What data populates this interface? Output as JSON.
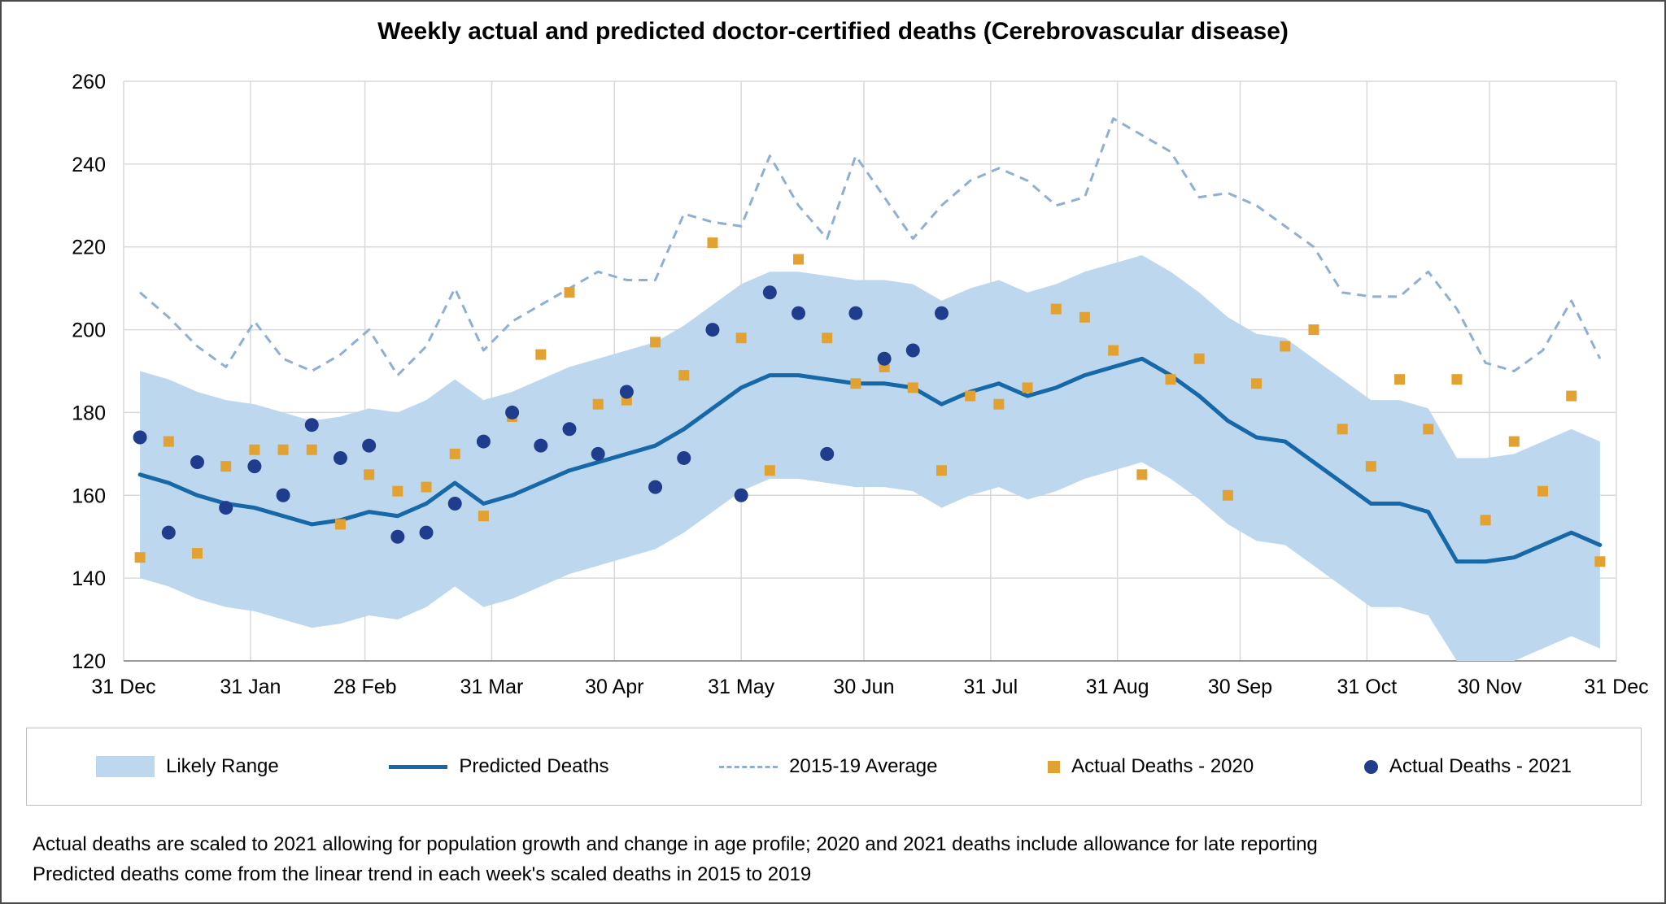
{
  "title": "Weekly actual and predicted doctor-certified deaths (Cerebrovascular disease)",
  "legend": {
    "items": [
      {
        "id": "likely-range",
        "label": "Likely Range"
      },
      {
        "id": "predicted-deaths",
        "label": "Predicted Deaths"
      },
      {
        "id": "average",
        "label": "2015-19 Average"
      },
      {
        "id": "actual-2020",
        "label": "Actual Deaths - 2020"
      },
      {
        "id": "actual-2021",
        "label": "Actual Deaths - 2021"
      }
    ]
  },
  "footnotes": {
    "line1": "Actual deaths are scaled to 2021 allowing for population growth and change in age profile; 2020 and 2021 deaths include allowance for late reporting",
    "line2": "Predicted deaths come from the linear trend in each week's scaled deaths in 2015 to 2019"
  },
  "chart_data": {
    "type": "line",
    "title": "Weekly actual and predicted doctor-certified deaths (Cerebrovascular disease)",
    "ylim": [
      120,
      260
    ],
    "y_ticks": [
      120,
      140,
      160,
      180,
      200,
      220,
      240,
      260
    ],
    "x_ticks": [
      {
        "day": 0,
        "label": "31 Dec"
      },
      {
        "day": 31,
        "label": "31 Jan"
      },
      {
        "day": 59,
        "label": "28 Feb"
      },
      {
        "day": 90,
        "label": "31 Mar"
      },
      {
        "day": 120,
        "label": "30 Apr"
      },
      {
        "day": 151,
        "label": "31 May"
      },
      {
        "day": 181,
        "label": "30 Jun"
      },
      {
        "day": 212,
        "label": "31 Jul"
      },
      {
        "day": 243,
        "label": "31 Aug"
      },
      {
        "day": 273,
        "label": "30 Sep"
      },
      {
        "day": 304,
        "label": "31 Oct"
      },
      {
        "day": 334,
        "label": "30 Nov"
      },
      {
        "day": 365,
        "label": "31 Dec"
      }
    ],
    "first_point_day": 4,
    "point_spacing_days": 7,
    "grid": true,
    "legend_position": "bottom",
    "series": [
      {
        "name": "Likely Range",
        "type": "band",
        "upper": [
          190,
          188,
          185,
          183,
          182,
          180,
          178,
          179,
          181,
          180,
          183,
          188,
          183,
          185,
          188,
          191,
          193,
          195,
          197,
          201,
          206,
          211,
          214,
          214,
          213,
          212,
          212,
          211,
          207,
          210,
          212,
          209,
          211,
          214,
          216,
          218,
          214,
          209,
          203,
          199,
          198,
          193,
          188,
          183,
          183,
          181,
          169,
          169,
          170,
          173,
          176,
          173
        ],
        "lower": [
          140,
          138,
          135,
          133,
          132,
          130,
          128,
          129,
          131,
          130,
          133,
          138,
          133,
          135,
          138,
          141,
          143,
          145,
          147,
          151,
          156,
          161,
          164,
          164,
          163,
          162,
          162,
          161,
          157,
          160,
          162,
          159,
          161,
          164,
          166,
          168,
          164,
          159,
          153,
          149,
          148,
          143,
          138,
          133,
          133,
          131,
          119,
          119,
          120,
          123,
          126,
          123
        ]
      },
      {
        "name": "Predicted Deaths",
        "type": "line",
        "values": [
          165,
          163,
          160,
          158,
          157,
          155,
          153,
          154,
          156,
          155,
          158,
          163,
          158,
          160,
          163,
          166,
          168,
          170,
          172,
          176,
          181,
          186,
          189,
          189,
          188,
          187,
          187,
          186,
          182,
          185,
          187,
          184,
          186,
          189,
          191,
          193,
          189,
          184,
          178,
          174,
          173,
          168,
          163,
          158,
          158,
          156,
          144,
          144,
          145,
          148,
          151,
          148
        ]
      },
      {
        "name": "2015-19 Average",
        "type": "dashed-line",
        "values": [
          209,
          203,
          196,
          191,
          202,
          193,
          190,
          194,
          200,
          189,
          196,
          210,
          195,
          202,
          206,
          210,
          214,
          212,
          212,
          228,
          226,
          225,
          242,
          230,
          222,
          242,
          232,
          222,
          230,
          236,
          239,
          236,
          230,
          232,
          251,
          247,
          243,
          232,
          233,
          230,
          225,
          220,
          209,
          208,
          208,
          214,
          205,
          192,
          190,
          195,
          207,
          193
        ]
      },
      {
        "name": "Actual Deaths - 2020",
        "type": "scatter-square",
        "values": [
          145,
          173,
          146,
          167,
          171,
          171,
          171,
          153,
          165,
          161,
          162,
          170,
          155,
          179,
          194,
          209,
          182,
          183,
          197,
          189,
          221,
          198,
          166,
          217,
          198,
          187,
          191,
          186,
          166,
          184,
          182,
          186,
          205,
          203,
          195,
          165,
          188,
          193,
          160,
          187,
          196,
          200,
          176,
          167,
          188,
          176,
          188,
          154,
          173,
          161,
          184,
          144
        ]
      },
      {
        "name": "Actual Deaths - 2021",
        "type": "scatter-circle",
        "values": [
          174,
          151,
          168,
          157,
          167,
          160,
          177,
          169,
          172,
          150,
          151,
          158,
          173,
          180,
          172,
          176,
          170,
          185,
          162,
          169,
          200,
          160,
          209,
          204,
          170,
          204,
          193,
          195,
          204
        ]
      }
    ],
    "colors": {
      "band": "#BDD7EE",
      "predicted": "#1668A8",
      "average": "#8EAFD4",
      "actual2020": "#E2A232",
      "actual2021": "#1F3D8C",
      "grid": "#D9D9D9",
      "axis": "#808080",
      "text": "#000000"
    }
  }
}
